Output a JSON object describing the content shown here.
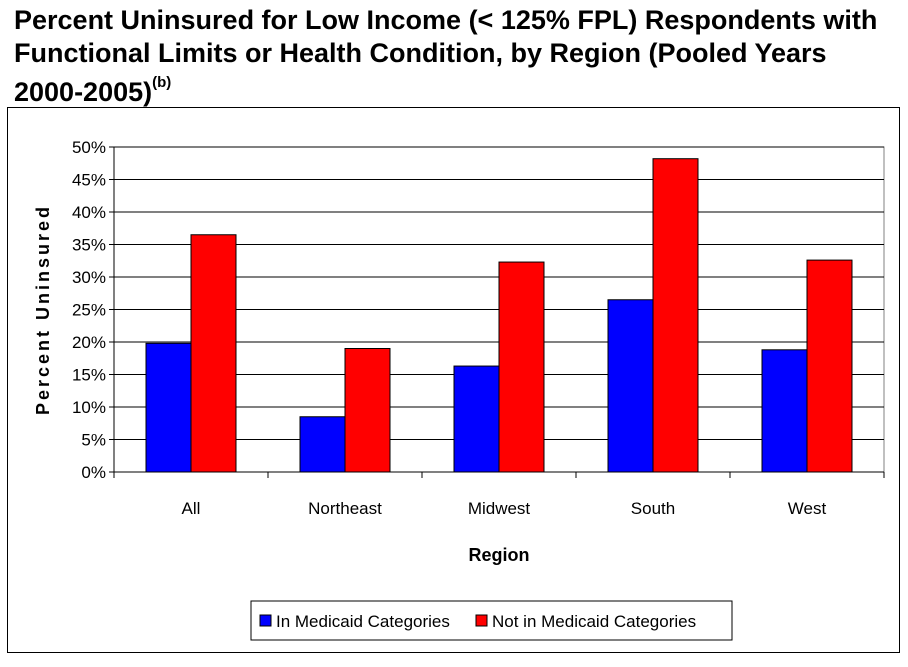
{
  "page": {
    "title_main": "Percent Uninsured for Low Income (< 125% FPL) Respondents with Functional Limits or Health Condition, by Region (Pooled Years 2000-2005)",
    "title_superscript": "(b)"
  },
  "chart_data": {
    "type": "bar",
    "title": "Percent Uninsured for Low Income (< 125% FPL) Respondents with Functional Limits or Health Condition, by Region (Pooled Years 2000-2005)(b)",
    "xlabel": "Region",
    "ylabel": "Percent Uninsured",
    "categories": [
      "All",
      "Northeast",
      "Midwest",
      "South",
      "West"
    ],
    "series": [
      {
        "name": "In Medicaid Categories",
        "color": "#0000ff",
        "values": [
          19.8,
          8.5,
          16.3,
          26.5,
          18.8
        ]
      },
      {
        "name": "Not in Medicaid Categories",
        "color": "#ff0000",
        "values": [
          36.5,
          19.0,
          32.3,
          48.2,
          32.6
        ]
      }
    ],
    "ylim": [
      0,
      50
    ],
    "yticks": [
      0,
      5,
      10,
      15,
      20,
      25,
      30,
      35,
      40,
      45,
      50
    ],
    "ytick_labels": [
      "0%",
      "5%",
      "10%",
      "15%",
      "20%",
      "25%",
      "30%",
      "35%",
      "40%",
      "45%",
      "50%"
    ],
    "grid": true,
    "legend_position": "bottom"
  }
}
